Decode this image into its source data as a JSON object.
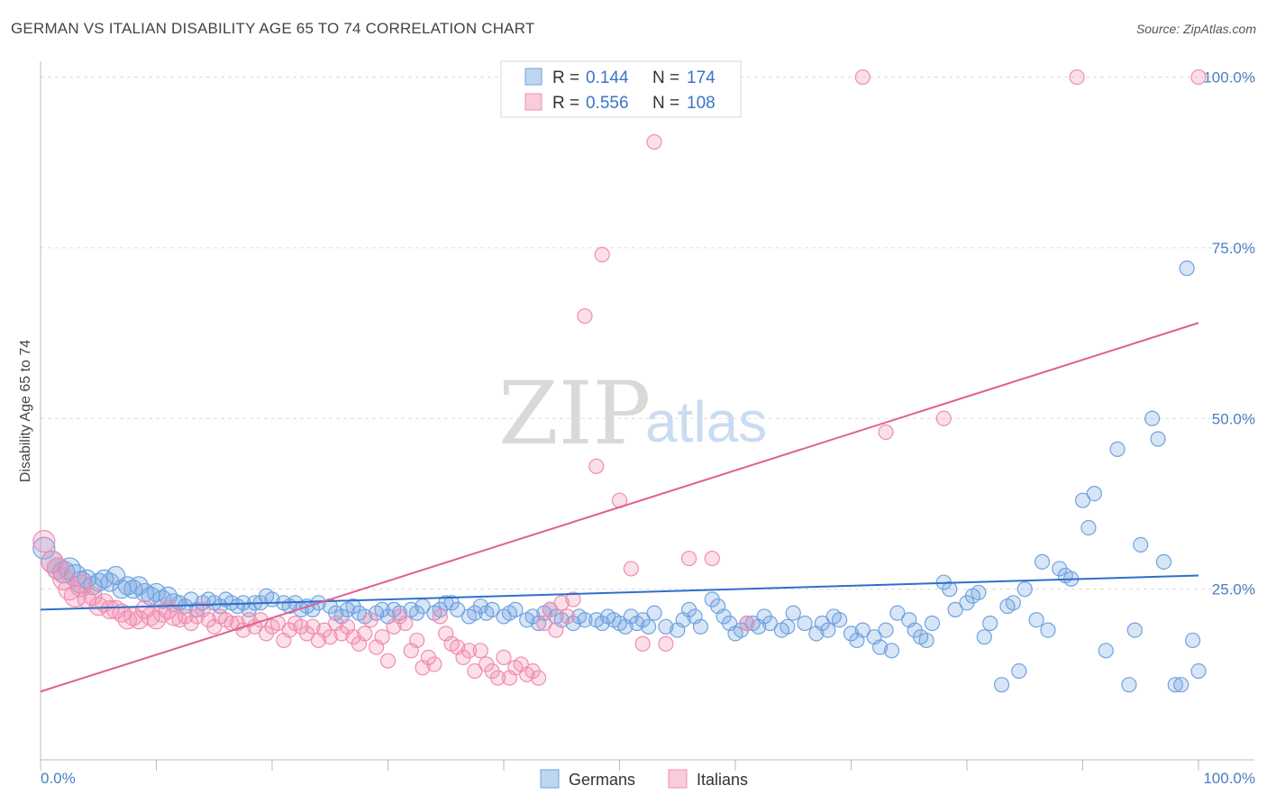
{
  "title": "GERMAN VS ITALIAN DISABILITY AGE 65 TO 74 CORRELATION CHART",
  "source": "Source: ZipAtlas.com",
  "watermark": {
    "zip": "ZIP",
    "atlas": "atlas"
  },
  "chart_data": {
    "type": "scatter",
    "title": "GERMAN VS ITALIAN DISABILITY AGE 65 TO 74 CORRELATION CHART",
    "ylabel": "Disability Age 65 to 74",
    "xlabel": "",
    "xlim": [
      0,
      100
    ],
    "ylim": [
      0,
      100
    ],
    "x_tick_labels": [
      "0.0%",
      "100.0%"
    ],
    "y_ticks": [
      {
        "value": 25,
        "label": "25.0%"
      },
      {
        "value": 50,
        "label": "50.0%"
      },
      {
        "value": 75,
        "label": "75.0%"
      },
      {
        "value": 100,
        "label": "100.0%"
      }
    ],
    "grid": "horizontal dashed",
    "legend": [
      {
        "name": "Germans",
        "r_label": "R =",
        "r": "0.144",
        "n_label": "N =",
        "n": "174",
        "color": "#6fa3e0"
      },
      {
        "name": "Italians",
        "r_label": "R =",
        "r": "0.556",
        "n_label": "N =",
        "n": "108",
        "color": "#f08db0"
      }
    ],
    "series": [
      {
        "name": "Germans",
        "color": "#6fa3e0",
        "trend": {
          "x": [
            0,
            100
          ],
          "y": [
            22.0,
            27.0
          ],
          "color": "#2f6fca"
        },
        "points": [
          [
            0.3,
            31.0
          ],
          [
            1,
            29
          ],
          [
            1.5,
            28
          ],
          [
            2,
            27.5
          ],
          [
            2.5,
            28
          ],
          [
            3,
            27
          ],
          [
            3.5,
            26
          ],
          [
            4,
            26.5
          ],
          [
            4.5,
            25.5
          ],
          [
            5,
            26
          ],
          [
            5.5,
            26.5
          ],
          [
            6,
            26
          ],
          [
            6.5,
            27
          ],
          [
            7,
            25
          ],
          [
            7.5,
            25.5
          ],
          [
            8,
            25
          ],
          [
            8.5,
            25.5
          ],
          [
            9,
            24.5
          ],
          [
            9.5,
            24
          ],
          [
            10,
            24.5
          ],
          [
            10.5,
            23.5
          ],
          [
            11,
            24
          ],
          [
            11.5,
            23
          ],
          [
            12,
            23
          ],
          [
            12.5,
            22.5
          ],
          [
            13,
            23.5
          ],
          [
            13.5,
            22
          ],
          [
            14,
            23
          ],
          [
            14.5,
            23.5
          ],
          [
            15,
            23
          ],
          [
            15.5,
            22.5
          ],
          [
            16,
            23.5
          ],
          [
            16.5,
            23
          ],
          [
            17,
            22.5
          ],
          [
            17.5,
            23
          ],
          [
            18,
            22
          ],
          [
            18.5,
            23
          ],
          [
            19,
            23
          ],
          [
            19.5,
            24
          ],
          [
            20,
            23.5
          ],
          [
            21,
            23
          ],
          [
            21.5,
            22.5
          ],
          [
            22,
            23
          ],
          [
            22.5,
            22
          ],
          [
            23,
            22.5
          ],
          [
            23.5,
            22
          ],
          [
            24,
            23
          ],
          [
            25,
            22.5
          ],
          [
            25.5,
            21.5
          ],
          [
            26,
            21
          ],
          [
            26.5,
            22
          ],
          [
            27,
            22.5
          ],
          [
            27.5,
            21.5
          ],
          [
            28,
            21
          ],
          [
            29,
            21.5
          ],
          [
            29.5,
            22
          ],
          [
            30,
            21
          ],
          [
            30.5,
            22
          ],
          [
            31,
            21.5
          ],
          [
            32,
            22
          ],
          [
            32.5,
            21.5
          ],
          [
            33,
            22.5
          ],
          [
            34,
            21.5
          ],
          [
            34.5,
            22
          ],
          [
            35,
            23
          ],
          [
            35.5,
            23
          ],
          [
            36,
            22
          ],
          [
            37,
            21
          ],
          [
            37.5,
            21.5
          ],
          [
            38,
            22.5
          ],
          [
            38.5,
            21.5
          ],
          [
            39,
            22
          ],
          [
            40,
            21
          ],
          [
            40.5,
            21.5
          ],
          [
            41,
            22
          ],
          [
            42,
            20.5
          ],
          [
            42.5,
            21
          ],
          [
            43,
            20
          ],
          [
            43.5,
            21.5
          ],
          [
            44,
            22
          ],
          [
            44.5,
            21
          ],
          [
            45,
            20.5
          ],
          [
            46,
            20
          ],
          [
            46.5,
            21
          ],
          [
            47,
            20.5
          ],
          [
            48,
            20.5
          ],
          [
            48.5,
            20
          ],
          [
            49,
            21
          ],
          [
            49.5,
            20.5
          ],
          [
            50,
            20
          ],
          [
            50.5,
            19.5
          ],
          [
            51,
            21
          ],
          [
            51.5,
            20
          ],
          [
            52,
            20.5
          ],
          [
            52.5,
            19.5
          ],
          [
            53,
            21.5
          ],
          [
            54,
            19.5
          ],
          [
            55,
            19
          ],
          [
            55.5,
            20.5
          ],
          [
            56,
            22
          ],
          [
            56.5,
            21
          ],
          [
            57,
            19.5
          ],
          [
            58,
            23.5
          ],
          [
            58.5,
            22.5
          ],
          [
            59,
            21
          ],
          [
            59.5,
            20
          ],
          [
            60,
            18.5
          ],
          [
            60.5,
            19
          ],
          [
            61,
            20
          ],
          [
            61.5,
            20
          ],
          [
            62,
            19.5
          ],
          [
            62.5,
            21
          ],
          [
            63,
            20
          ],
          [
            64,
            19
          ],
          [
            64.5,
            19.5
          ],
          [
            65,
            21.5
          ],
          [
            66,
            20
          ],
          [
            67,
            18.5
          ],
          [
            67.5,
            20
          ],
          [
            68,
            19
          ],
          [
            68.5,
            21
          ],
          [
            69,
            20.5
          ],
          [
            70,
            18.5
          ],
          [
            70.5,
            17.5
          ],
          [
            71,
            19
          ],
          [
            72,
            18
          ],
          [
            72.5,
            16.5
          ],
          [
            73,
            19
          ],
          [
            73.5,
            16
          ],
          [
            74,
            21.5
          ],
          [
            75,
            20.5
          ],
          [
            75.5,
            19
          ],
          [
            76,
            18
          ],
          [
            76.5,
            17.5
          ],
          [
            77,
            20
          ],
          [
            78,
            26
          ],
          [
            78.5,
            25
          ],
          [
            79,
            22
          ],
          [
            80,
            23
          ],
          [
            80.5,
            24
          ],
          [
            81,
            24.5
          ],
          [
            81.5,
            18
          ],
          [
            82,
            20
          ],
          [
            83,
            11
          ],
          [
            83.5,
            22.5
          ],
          [
            84,
            23
          ],
          [
            84.5,
            13
          ],
          [
            85,
            25
          ],
          [
            86,
            20.5
          ],
          [
            86.5,
            29
          ],
          [
            87,
            19
          ],
          [
            88,
            28
          ],
          [
            88.5,
            27
          ],
          [
            89,
            26.5
          ],
          [
            90,
            38
          ],
          [
            90.5,
            34
          ],
          [
            91,
            39
          ],
          [
            92,
            16
          ],
          [
            93,
            45.5
          ],
          [
            94,
            11
          ],
          [
            94.5,
            19
          ],
          [
            95,
            31.5
          ],
          [
            96,
            50
          ],
          [
            96.5,
            47
          ],
          [
            97,
            29
          ],
          [
            98,
            11
          ],
          [
            98.5,
            11
          ],
          [
            99,
            72
          ],
          [
            99.5,
            17.5
          ],
          [
            100,
            13
          ]
        ]
      },
      {
        "name": "Italians",
        "color": "#f08db0",
        "trend": {
          "x": [
            0,
            100
          ],
          "y": [
            10.0,
            64.0
          ],
          "color": "#e0608f"
        },
        "points": [
          [
            0.3,
            32
          ],
          [
            1,
            29
          ],
          [
            1.5,
            28
          ],
          [
            2,
            26.5
          ],
          [
            2.5,
            25
          ],
          [
            3,
            24
          ],
          [
            3.5,
            25.5
          ],
          [
            4,
            23.5
          ],
          [
            4.5,
            24
          ],
          [
            5,
            22.5
          ],
          [
            5.5,
            23
          ],
          [
            6,
            22
          ],
          [
            6.5,
            22
          ],
          [
            7,
            21.5
          ],
          [
            7.5,
            20.5
          ],
          [
            8,
            21
          ],
          [
            8.5,
            20.5
          ],
          [
            9,
            22
          ],
          [
            9.5,
            21
          ],
          [
            10,
            20.5
          ],
          [
            10.5,
            21.5
          ],
          [
            11,
            22
          ],
          [
            11.5,
            21
          ],
          [
            12,
            20.5
          ],
          [
            12.5,
            21
          ],
          [
            13,
            20
          ],
          [
            13.5,
            21
          ],
          [
            14,
            22
          ],
          [
            14.5,
            20.5
          ],
          [
            15,
            19.5
          ],
          [
            15.5,
            21
          ],
          [
            16,
            20.5
          ],
          [
            16.5,
            20
          ],
          [
            17,
            20
          ],
          [
            17.5,
            19
          ],
          [
            18,
            20.5
          ],
          [
            18.5,
            19.5
          ],
          [
            19,
            20.5
          ],
          [
            19.5,
            18.5
          ],
          [
            20,
            19.5
          ],
          [
            20.5,
            20
          ],
          [
            21,
            17.5
          ],
          [
            21.5,
            19
          ],
          [
            22,
            20
          ],
          [
            22.5,
            19.5
          ],
          [
            23,
            18.5
          ],
          [
            23.5,
            19.5
          ],
          [
            24,
            17.5
          ],
          [
            24.5,
            19
          ],
          [
            25,
            18
          ],
          [
            25.5,
            20
          ],
          [
            26,
            18.5
          ],
          [
            26.5,
            19.5
          ],
          [
            27,
            18
          ],
          [
            27.5,
            17
          ],
          [
            28,
            18.5
          ],
          [
            28.5,
            20.5
          ],
          [
            29,
            16.5
          ],
          [
            29.5,
            18
          ],
          [
            30,
            14.5
          ],
          [
            30.5,
            19.5
          ],
          [
            31,
            21
          ],
          [
            31.5,
            20
          ],
          [
            32,
            16
          ],
          [
            32.5,
            17.5
          ],
          [
            33,
            13.5
          ],
          [
            33.5,
            15
          ],
          [
            34,
            14
          ],
          [
            34.5,
            21
          ],
          [
            35,
            18.5
          ],
          [
            35.5,
            17
          ],
          [
            36,
            16.5
          ],
          [
            36.5,
            15
          ],
          [
            37,
            16
          ],
          [
            37.5,
            13
          ],
          [
            38,
            16
          ],
          [
            38.5,
            14
          ],
          [
            39,
            13
          ],
          [
            39.5,
            12
          ],
          [
            40,
            15
          ],
          [
            40.5,
            12
          ],
          [
            41,
            13.5
          ],
          [
            41.5,
            14
          ],
          [
            42,
            12.5
          ],
          [
            42.5,
            13
          ],
          [
            43,
            12
          ],
          [
            43.5,
            20
          ],
          [
            44,
            22
          ],
          [
            44.5,
            19
          ],
          [
            45,
            23
          ],
          [
            45.5,
            21
          ],
          [
            46,
            23.5
          ],
          [
            47,
            65
          ],
          [
            48,
            43
          ],
          [
            48.5,
            74
          ],
          [
            50,
            38
          ],
          [
            51,
            28
          ],
          [
            52,
            17
          ],
          [
            53,
            90.5
          ],
          [
            54,
            17
          ],
          [
            56,
            29.5
          ],
          [
            58,
            29.5
          ],
          [
            61,
            20
          ],
          [
            71,
            100
          ],
          [
            78,
            50
          ],
          [
            89.5,
            100
          ],
          [
            100,
            100
          ],
          [
            73,
            48
          ]
        ]
      }
    ]
  },
  "bottom_legend": [
    {
      "label": "Germans",
      "color": "#6fa3e0"
    },
    {
      "label": "Italians",
      "color": "#f08db0"
    }
  ]
}
